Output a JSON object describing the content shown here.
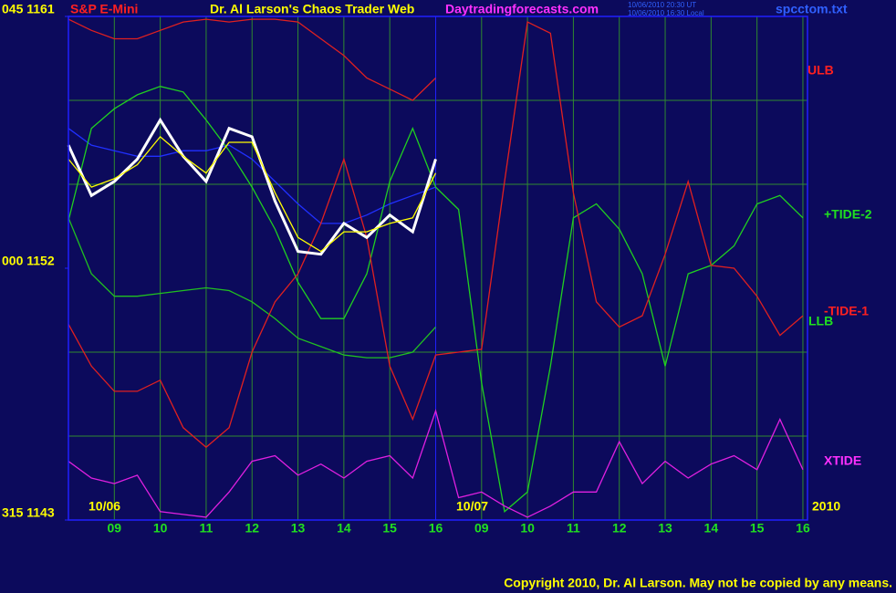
{
  "header": {
    "instrument": "S&P E-Mini",
    "title": "Dr. Al Larson's Chaos Trader Web",
    "site": "Daytradingforecasts.com",
    "timestamps": [
      "10/06/2010 20:30 UT",
      "10/06/2010 16:30 Local"
    ],
    "file": "spcctom.txt"
  },
  "footer": "Copyright 2010, Dr. Al Larson. May not be copied by any means.",
  "chart_data": {
    "type": "line",
    "x": [
      0,
      0.5,
      1,
      1.5,
      2,
      2.5,
      3,
      3.5,
      4,
      4.5,
      5,
      5.5,
      6,
      6.5,
      7,
      7.5,
      8,
      8.5,
      9,
      9.5,
      10,
      10.5,
      11,
      11.5,
      12,
      12.5,
      13,
      13.5,
      14,
      14.5,
      15,
      15.5,
      16
    ],
    "xlim": [
      0,
      16.1
    ],
    "xticks": [
      {
        "value": 1,
        "label": "09"
      },
      {
        "value": 2,
        "label": "10"
      },
      {
        "value": 3,
        "label": "11"
      },
      {
        "value": 4,
        "label": "12"
      },
      {
        "value": 5,
        "label": "13"
      },
      {
        "value": 6,
        "label": "14"
      },
      {
        "value": 7,
        "label": "15"
      },
      {
        "value": 8,
        "label": "16"
      },
      {
        "value": 9,
        "label": "09"
      },
      {
        "value": 10,
        "label": "10"
      },
      {
        "value": 11,
        "label": "11"
      },
      {
        "value": 12,
        "label": "12"
      },
      {
        "value": 13,
        "label": "13"
      },
      {
        "value": 14,
        "label": "14"
      },
      {
        "value": 15,
        "label": "15"
      },
      {
        "value": 16,
        "label": "16"
      }
    ],
    "ylim": [
      1143,
      1161
    ],
    "yticks": [
      {
        "value": 1143,
        "label": "315 1143"
      },
      {
        "value": 1152,
        "label": "000 1152"
      },
      {
        "value": 1161,
        "label": "045 1161"
      }
    ],
    "ygrid": [
      1146,
      1149,
      1155,
      1158
    ],
    "grid": true,
    "date_labels": [
      "10/06",
      "10/07",
      "2010"
    ],
    "series": [
      {
        "color": "#2030ff",
        "values": [
          1157.0,
          1156.4,
          1156.2,
          1156.0,
          1156.0,
          1156.2,
          1156.2,
          1156.4,
          1155.9,
          1155.1,
          1154.3,
          1153.6,
          1153.6,
          1153.9,
          1154.3,
          1154.6,
          1154.9,
          null,
          null,
          null,
          null,
          null,
          null,
          null,
          null,
          null,
          null,
          null,
          null,
          null,
          null,
          null,
          null
        ]
      },
      {
        "name": "ULB",
        "color": "#e02020",
        "values": [
          1160.9,
          1160.5,
          1160.2,
          1160.2,
          1160.5,
          1160.8,
          1160.9,
          1160.8,
          1160.9,
          1160.9,
          1160.8,
          1160.2,
          1159.6,
          1158.8,
          1158.4,
          1158.0,
          1158.8,
          null,
          null,
          null,
          null,
          null,
          null,
          null,
          null,
          null,
          null,
          null,
          null,
          null,
          null,
          null,
          null
        ]
      },
      {
        "name": "LLB",
        "color": "#20c020",
        "values": [
          1153.8,
          1151.8,
          1151.0,
          1151.0,
          1151.1,
          1151.2,
          1151.3,
          1151.2,
          1150.8,
          1150.2,
          1149.5,
          1149.2,
          1148.9,
          1148.8,
          1148.8,
          1149.0,
          1149.9,
          null,
          null,
          null,
          null,
          null,
          null,
          null,
          null,
          null,
          null,
          null,
          null,
          null,
          null,
          null,
          null
        ]
      },
      {
        "name": "+TIDE-2",
        "color": "#20d020",
        "values": [
          1153.7,
          1157.0,
          1157.7,
          1158.2,
          1158.5,
          1158.3,
          1157.3,
          1156.2,
          1154.9,
          1153.4,
          1151.5,
          1150.2,
          1150.2,
          1151.8,
          1155.1,
          1157.0,
          1154.9,
          1154.1,
          1147.9,
          1143.3,
          1144.0,
          1148.5,
          1153.8,
          1154.3,
          1153.4,
          1151.8,
          1148.5,
          1151.8,
          1152.1,
          1152.8,
          1154.3,
          1154.6,
          1153.8
        ]
      },
      {
        "name": "-TIDE-1",
        "color": "#e02020",
        "values": [
          1150.0,
          1148.5,
          1147.6,
          1147.6,
          1148.0,
          1146.3,
          1145.6,
          1146.3,
          1149.0,
          1150.8,
          1151.8,
          1153.6,
          1155.9,
          1153.1,
          1148.5,
          1146.6,
          1148.9,
          1149.0,
          1149.1,
          1155.1,
          1160.8,
          1160.4,
          1154.7,
          1150.8,
          1149.9,
          1150.3,
          1152.5,
          1155.1,
          1152.1,
          1152.0,
          1151.0,
          1149.6,
          1150.3
        ]
      },
      {
        "name": "XTIDE",
        "color": "#e020e0",
        "values": [
          1145.1,
          1144.5,
          1144.3,
          1144.6,
          1143.3,
          1143.2,
          1143.1,
          1144.0,
          1145.1,
          1145.3,
          1144.6,
          1145.0,
          1144.5,
          1145.1,
          1145.3,
          1144.5,
          1146.9,
          1143.8,
          1144.0,
          1143.5,
          1143.1,
          1143.5,
          1144.0,
          1144.0,
          1145.8,
          1144.3,
          1145.1,
          1144.5,
          1145.0,
          1145.3,
          1144.8,
          1146.6,
          1144.8
        ]
      },
      {
        "color": "#ffffff",
        "values": [
          1156.4,
          1154.6,
          1155.1,
          1155.9,
          1157.3,
          1156.0,
          1155.1,
          1157.0,
          1156.7,
          1154.4,
          1152.6,
          1152.5,
          1153.6,
          1153.1,
          1153.9,
          1153.3,
          1155.9,
          null,
          null,
          null,
          null,
          null,
          null,
          null,
          null,
          null,
          null,
          null,
          null,
          null,
          null,
          null,
          null
        ]
      },
      {
        "color": "#ffff00",
        "values": [
          1155.9,
          1154.9,
          1155.2,
          1155.7,
          1156.7,
          1156.0,
          1155.4,
          1156.5,
          1156.5,
          1154.7,
          1153.1,
          1152.6,
          1153.3,
          1153.3,
          1153.6,
          1153.8,
          1155.4,
          null,
          null,
          null,
          null,
          null,
          null,
          null,
          null,
          null,
          null,
          null,
          null,
          null,
          null,
          null,
          null
        ]
      }
    ]
  }
}
